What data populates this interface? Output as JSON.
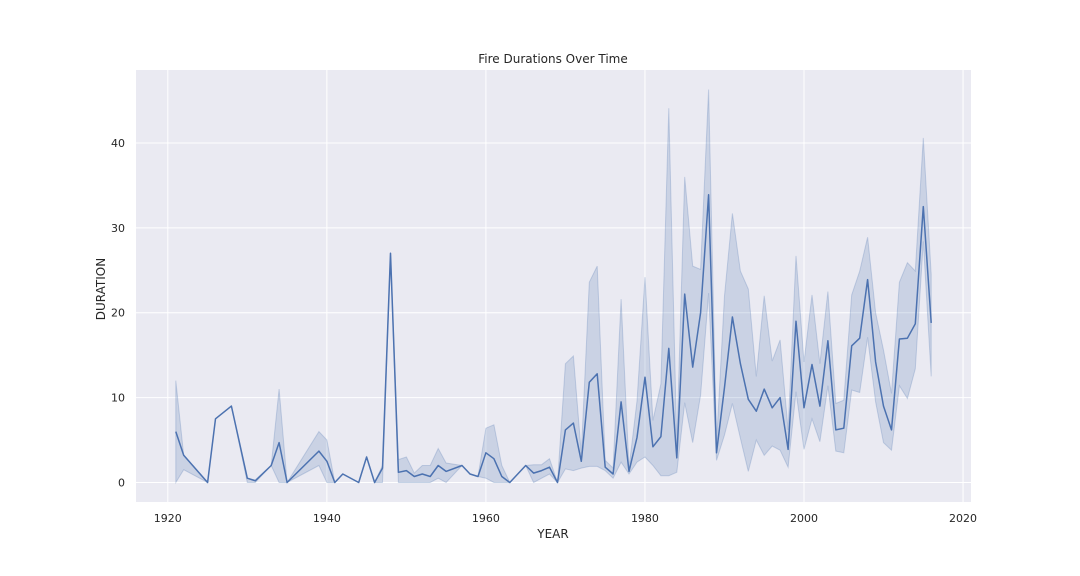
{
  "chart_data": {
    "type": "line",
    "title": "Fire Durations Over Time",
    "xlabel": "YEAR",
    "ylabel": "DURATION",
    "xlim": [
      1916,
      2021
    ],
    "ylim": [
      -2.3,
      48.6
    ],
    "x_ticks": [
      1920,
      1940,
      1960,
      1980,
      2000,
      2020
    ],
    "y_ticks": [
      0,
      10,
      20,
      30,
      40
    ],
    "grid": true,
    "legend": "none",
    "colors": {
      "line": "#4c72b0",
      "band": "#4c72b0",
      "background": "#eaeaf2",
      "grid": "#ffffff"
    },
    "series": [
      {
        "x": [
          1921,
          1922,
          1925,
          1926,
          1928,
          1930,
          1931,
          1933,
          1934,
          1935,
          1939,
          1940,
          1941,
          1942,
          1944,
          1945,
          1946,
          1947,
          1948,
          1949,
          1950,
          1951,
          1952,
          1953,
          1954,
          1955,
          1957,
          1958,
          1959,
          1960,
          1961,
          1962,
          1963,
          1965,
          1966,
          1967,
          1968,
          1969,
          1970,
          1971,
          1972,
          1973,
          1974,
          1975,
          1976,
          1977,
          1978,
          1979,
          1980,
          1981,
          1982,
          1983,
          1984,
          1985,
          1986,
          1987,
          1988,
          1989,
          1990,
          1991,
          1992,
          1993,
          1994,
          1995,
          1996,
          1997,
          1998,
          1999,
          2000,
          2001,
          2002,
          2003,
          2004,
          2005,
          2006,
          2007,
          2008,
          2009,
          2010,
          2011,
          2012,
          2013,
          2014,
          2015,
          2016
        ],
        "values": [
          6,
          3.2,
          0,
          7.5,
          9,
          0.5,
          0.2,
          2,
          4.7,
          0,
          3.7,
          2.5,
          0,
          1,
          0,
          3,
          0,
          1.7,
          27,
          1.2,
          1.4,
          0.7,
          1,
          0.7,
          2,
          1.3,
          2,
          1,
          0.7,
          3.5,
          2.8,
          0.7,
          0,
          2,
          1.1,
          1.4,
          1.8,
          0,
          6.2,
          7,
          2.5,
          11.8,
          12.8,
          1.8,
          1,
          9.5,
          1.3,
          5.3,
          12.4,
          4.2,
          5.4,
          15.8,
          2.9,
          22.2,
          13.6,
          20,
          33.9,
          3.5,
          11.2,
          19.5,
          14,
          9.8,
          8.4,
          11,
          8.8,
          10,
          3.9,
          19,
          8.8,
          13.9,
          9,
          16.7,
          6.2,
          6.4,
          16.1,
          17,
          23.9,
          14.2,
          9,
          6.2,
          16.9,
          17,
          18.7,
          32.5,
          18.8
        ],
        "lower": [
          0,
          1.5,
          0,
          7.5,
          9,
          0,
          0,
          2,
          0,
          0,
          2,
          0,
          0,
          1,
          0,
          3,
          0,
          0,
          27,
          0,
          0,
          0,
          0,
          0,
          0.5,
          0,
          2,
          1,
          0.7,
          0.5,
          0,
          0,
          0,
          2,
          0,
          0.5,
          1,
          0,
          1.6,
          1.4,
          1.7,
          1.9,
          1.9,
          1.4,
          0.5,
          2.4,
          1,
          2.4,
          3,
          2,
          0.8,
          0.8,
          1.2,
          9.4,
          4.7,
          10.3,
          22.3,
          2.6,
          5.6,
          9.3,
          5.2,
          1.3,
          5,
          3.2,
          4.3,
          3.8,
          1.8,
          10.7,
          3.9,
          7.5,
          4.8,
          11.4,
          3.7,
          3.5,
          10.9,
          10.6,
          17.1,
          9.5,
          4.7,
          3.8,
          11.4,
          9.9,
          13.4,
          28.4,
          12.5
        ],
        "upper": [
          12,
          3.2,
          0,
          7.5,
          9,
          0.5,
          0.3,
          2,
          11,
          0,
          6,
          5,
          0,
          1,
          0,
          3,
          0,
          2,
          27,
          2.7,
          3,
          1.1,
          2,
          2,
          4,
          2.3,
          2,
          1,
          0.7,
          6.4,
          6.8,
          2,
          0,
          2,
          2.1,
          2.1,
          2.8,
          0,
          14,
          14.9,
          3.4,
          23.6,
          25.5,
          2.6,
          1.7,
          21.6,
          1.7,
          9.6,
          24.2,
          7.3,
          11.6,
          44.1,
          4.5,
          36,
          25.5,
          25.1,
          46.3,
          4.6,
          22,
          31.7,
          24.9,
          22.8,
          12.5,
          22,
          14.3,
          16.8,
          6.2,
          26.7,
          14.2,
          22.1,
          14,
          22.5,
          9.3,
          9.7,
          22.1,
          24.9,
          28.9,
          20,
          15.6,
          10.5,
          23.6,
          25.9,
          24.9,
          40.6,
          24.5
        ]
      }
    ]
  }
}
